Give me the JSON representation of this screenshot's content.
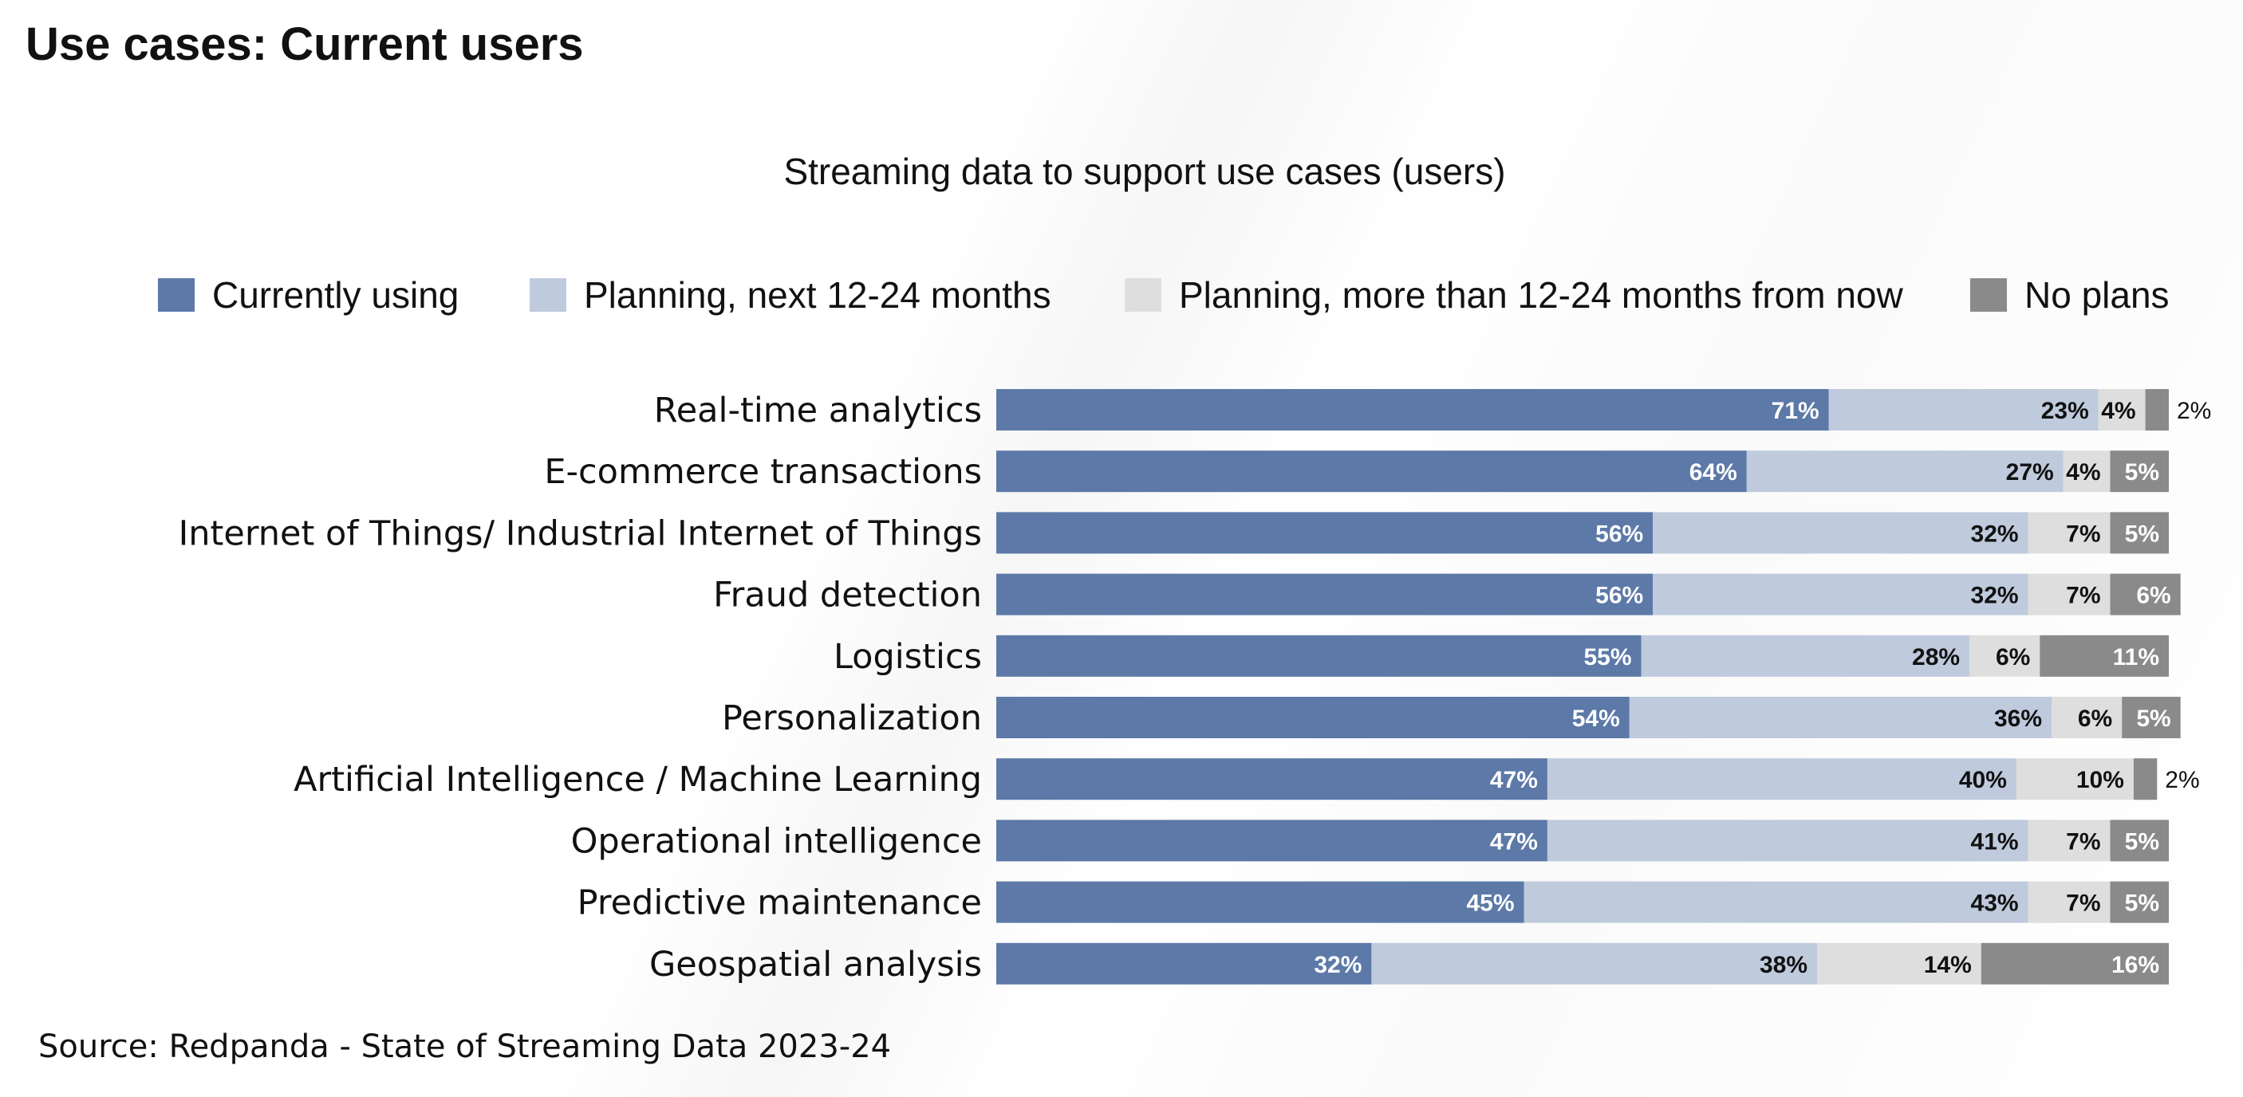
{
  "page": {
    "title": "Use cases: Current users",
    "source": "Source: Redpanda - State of Streaming Data 2023-24"
  },
  "colors": {
    "currently_using": "#5c79a8",
    "planning_next": "#bfcadd",
    "planning_later": "#dedede",
    "no_plans": "#8a8a8a"
  },
  "chart_data": {
    "type": "bar",
    "orientation": "horizontal",
    "stacked": true,
    "title": "Streaming data to support use cases (users)",
    "legend_position": "top",
    "xlabel": "",
    "ylabel": "",
    "unit": "%",
    "categories": [
      "Real-time analytics",
      "E-commerce transactions",
      "Internet of Things/ Industrial Internet of Things",
      "Fraud detection",
      "Logistics",
      "Personalization",
      "Artificial Intelligence / Machine Learning",
      "Operational intelligence",
      "Predictive maintenance",
      "Geospatial analysis"
    ],
    "series": [
      {
        "name": "Currently using",
        "color": "#5c79a8",
        "values": [
          71,
          64,
          56,
          56,
          55,
          54,
          47,
          47,
          45,
          32
        ]
      },
      {
        "name": "Planning, next 12-24 months",
        "color": "#bfcadd",
        "values": [
          23,
          27,
          32,
          32,
          28,
          36,
          40,
          41,
          43,
          38
        ]
      },
      {
        "name": "Planning, more than 12-24 months from now",
        "color": "#dedede",
        "values": [
          4,
          4,
          7,
          7,
          6,
          6,
          10,
          7,
          7,
          14
        ]
      },
      {
        "name": "No plans",
        "color": "#8a8a8a",
        "values": [
          2,
          5,
          5,
          6,
          11,
          5,
          2,
          5,
          5,
          16
        ]
      }
    ]
  }
}
